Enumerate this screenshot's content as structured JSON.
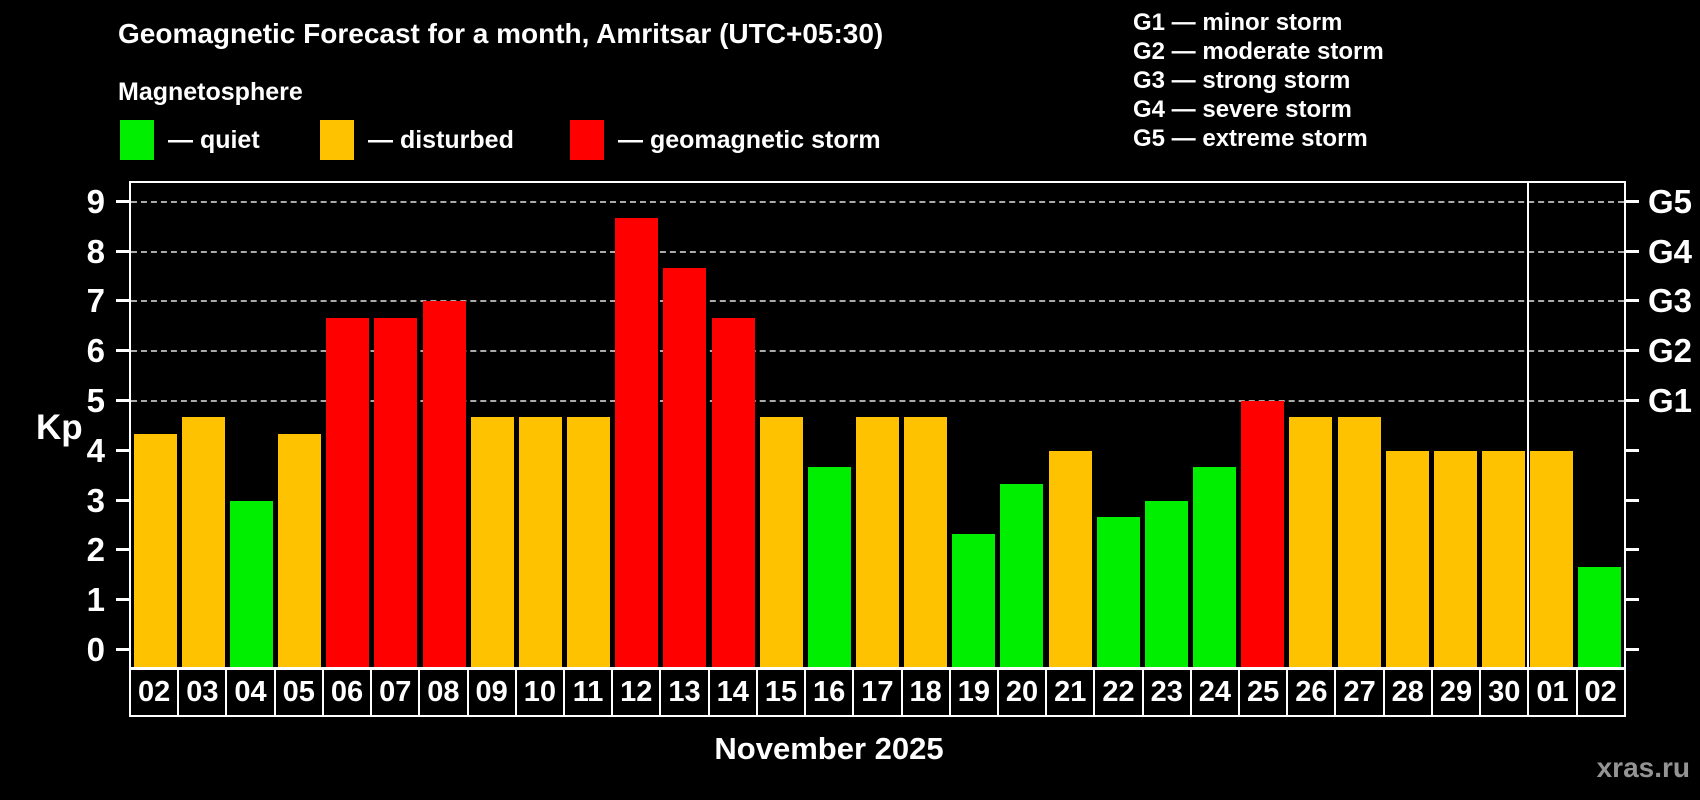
{
  "title": "Geomagnetic Forecast for a month, Amritsar (UTC+05:30)",
  "subtitle": "Magnetosphere",
  "bar_legend": {
    "quiet": "— quiet",
    "disturbed": "— disturbed",
    "storm": "— geomagnetic storm"
  },
  "storm_scale": [
    "G1 — minor storm",
    "G2 — moderate storm",
    "G3 — strong storm",
    "G4 — severe storm",
    "G5 — extreme storm"
  ],
  "axes": {
    "y_label": "Kp",
    "y_ticks": [
      0,
      1,
      2,
      3,
      4,
      5,
      6,
      7,
      8,
      9
    ],
    "right_ticks": [
      {
        "kp": 5,
        "label": "G1"
      },
      {
        "kp": 6,
        "label": "G2"
      },
      {
        "kp": 7,
        "label": "G3"
      },
      {
        "kp": 8,
        "label": "G4"
      },
      {
        "kp": 9,
        "label": "G5"
      }
    ],
    "x_label": "November 2025"
  },
  "watermark": "xras.ru",
  "colors": {
    "quiet": "#00ee00",
    "disturbed": "#ffc200",
    "storm": "#ff0000",
    "background": "#000000",
    "foreground": "#ffffff",
    "gridline": "#aaaaaa",
    "watermark": "#949494"
  },
  "chart_data": {
    "type": "bar",
    "title": "Geomagnetic Forecast for a month, Amritsar (UTC+05:30)",
    "xlabel": "November 2025",
    "ylabel": "Kp",
    "ylim": [
      0,
      9.37
    ],
    "grid_on": true,
    "grid_kp_levels": [
      5,
      6,
      7,
      8,
      9
    ],
    "month_separator_after_index": 28,
    "categories": [
      "02",
      "03",
      "04",
      "05",
      "06",
      "07",
      "08",
      "09",
      "10",
      "11",
      "12",
      "13",
      "14",
      "15",
      "16",
      "17",
      "18",
      "19",
      "20",
      "21",
      "22",
      "23",
      "24",
      "25",
      "26",
      "27",
      "28",
      "29",
      "30",
      "01",
      "02"
    ],
    "values": [
      4.33,
      4.67,
      3.0,
      4.33,
      6.67,
      6.67,
      7.0,
      4.67,
      4.67,
      4.67,
      8.67,
      7.67,
      6.67,
      4.67,
      3.67,
      4.67,
      4.67,
      2.33,
      3.33,
      4.0,
      2.67,
      3.0,
      3.67,
      5.0,
      4.67,
      4.67,
      4.0,
      4.0,
      4.0,
      4.0,
      1.67
    ],
    "statuses": [
      "disturbed",
      "disturbed",
      "quiet",
      "disturbed",
      "storm",
      "storm",
      "storm",
      "disturbed",
      "disturbed",
      "disturbed",
      "storm",
      "storm",
      "storm",
      "disturbed",
      "quiet",
      "disturbed",
      "disturbed",
      "quiet",
      "quiet",
      "disturbed",
      "quiet",
      "quiet",
      "quiet",
      "storm",
      "disturbed",
      "disturbed",
      "disturbed",
      "disturbed",
      "disturbed",
      "disturbed",
      "quiet"
    ]
  }
}
